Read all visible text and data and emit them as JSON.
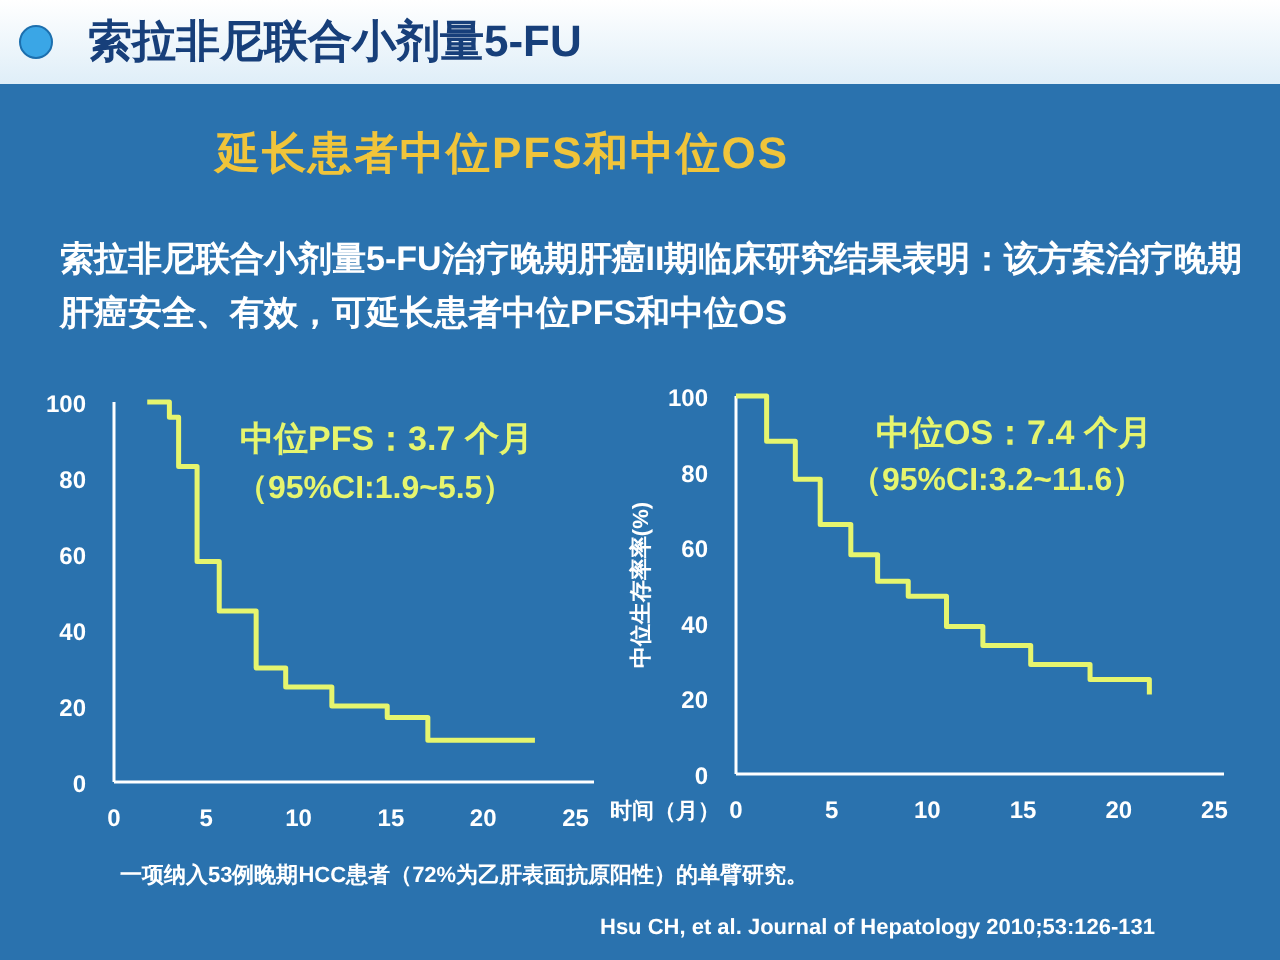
{
  "chart_data": [
    {
      "type": "step",
      "title": "索拉非尼联合小剂量5-FU",
      "subtitle": "延长患者中位PFS和中位OS",
      "annotations": [
        "索拉非尼联合小剂量5-FU治疗晚期肝癌II期临床研究结果表明：该方案治疗晚期肝癌安全、有效，可延长患者中位PFS和中位OS",
        "中位PFS：3.7 个月",
        "（95%CI:1.9~5.5）",
        "一项纳入53例晚期HCC患者（72%为乙肝表面抗原阳性）的单臂研究。"
      ],
      "series": [
        {
          "color": "#e6f56e",
          "x": [
            1.8,
            3.0,
            3.5,
            4.5,
            5.7,
            7.7,
            9.3,
            11.8,
            14.8,
            17.0,
            22.8
          ],
          "values": [
            100,
            96,
            83,
            58,
            45,
            30,
            25,
            20,
            17,
            11,
            11
          ]
        }
      ],
      "xlim": [
        0,
        26
      ],
      "xticks": [
        0,
        5,
        10,
        15,
        20,
        25
      ],
      "ylim": [
        0,
        100
      ],
      "yticks": [
        0,
        20,
        40,
        60,
        80,
        100
      ],
      "grid": false
    },
    {
      "type": "step",
      "xlabel": "时间（月）",
      "ylabel": "中位生存率率(%)",
      "annotations": [
        "中位OS：7.4 个月",
        "（95%CI:3.2~11.6）",
        "Hsu CH, et al. Journal of Hepatology 2010;53:126-131"
      ],
      "series": [
        {
          "color": "#e6f56e",
          "x": [
            0,
            1.6,
            3.1,
            4.4,
            6.0,
            7.4,
            9.0,
            11.0,
            12.9,
            15.4,
            18.5,
            21.6
          ],
          "values": [
            100,
            88,
            78,
            66,
            58,
            51,
            47,
            39,
            34,
            29,
            25,
            21
          ]
        }
      ],
      "xlim": [
        0,
        25.5
      ],
      "xticks": [
        0,
        5,
        10,
        15,
        20,
        25
      ],
      "ylim": [
        0,
        100
      ],
      "yticks": [
        0,
        20,
        40,
        60,
        80,
        100
      ],
      "grid": false
    }
  ]
}
